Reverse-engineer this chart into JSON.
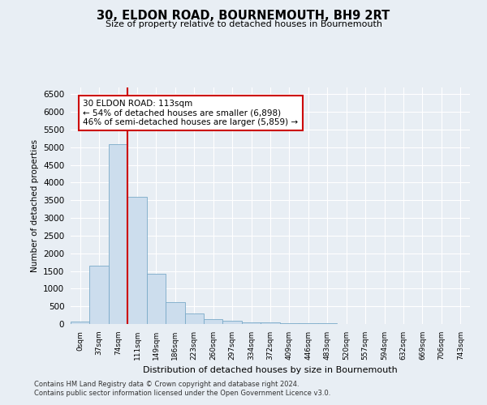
{
  "title": "30, ELDON ROAD, BOURNEMOUTH, BH9 2RT",
  "subtitle": "Size of property relative to detached houses in Bournemouth",
  "xlabel": "Distribution of detached houses by size in Bournemouth",
  "ylabel": "Number of detached properties",
  "bin_labels": [
    "0sqm",
    "37sqm",
    "74sqm",
    "111sqm",
    "149sqm",
    "186sqm",
    "223sqm",
    "260sqm",
    "297sqm",
    "334sqm",
    "372sqm",
    "409sqm",
    "446sqm",
    "483sqm",
    "520sqm",
    "557sqm",
    "594sqm",
    "632sqm",
    "669sqm",
    "706sqm",
    "743sqm"
  ],
  "bar_values": [
    75,
    1650,
    5090,
    3590,
    1410,
    620,
    300,
    140,
    90,
    55,
    40,
    30,
    20,
    15,
    10,
    8,
    5,
    4,
    3,
    2,
    2
  ],
  "bar_color": "#ccdded",
  "bar_edge_color": "#7aaac8",
  "property_line_x": 3,
  "property_line_color": "#cc0000",
  "annotation_text": "30 ELDON ROAD: 113sqm\n← 54% of detached houses are smaller (6,898)\n46% of semi-detached houses are larger (5,859) →",
  "annotation_box_color": "#ffffff",
  "annotation_box_edge_color": "#cc0000",
  "ylim": [
    0,
    6700
  ],
  "yticks": [
    0,
    500,
    1000,
    1500,
    2000,
    2500,
    3000,
    3500,
    4000,
    4500,
    5000,
    5500,
    6000,
    6500
  ],
  "footer_line1": "Contains HM Land Registry data © Crown copyright and database right 2024.",
  "footer_line2": "Contains public sector information licensed under the Open Government Licence v3.0.",
  "background_color": "#e8eef4",
  "plot_bg_color": "#e8eef4",
  "grid_color": "#ffffff"
}
